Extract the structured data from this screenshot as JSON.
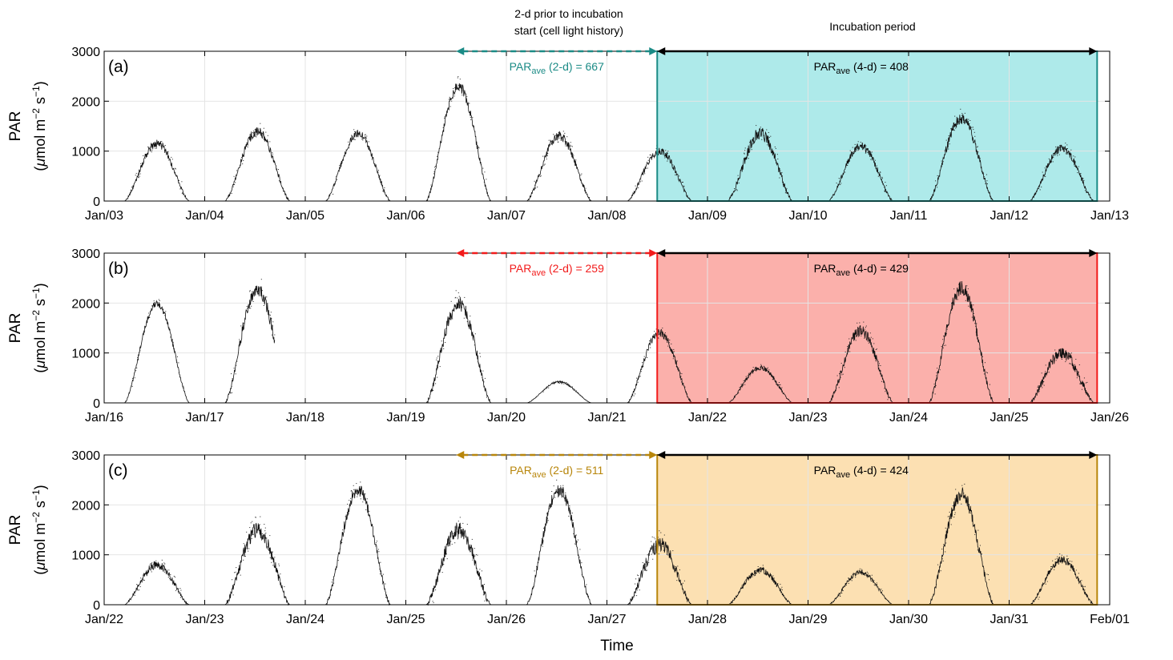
{
  "figure": {
    "xlabel": "Time",
    "top_label_history_line1": "2-d prior to incubation",
    "top_label_history_line2": "start (cell light history)",
    "top_label_incubation": "Incubation period"
  },
  "chart_data": [
    {
      "type": "line",
      "panel_label": "(a)",
      "ylabel_line1": "PAR",
      "ylabel_line2_parts": [
        "(",
        "μ",
        "mol m",
        "−2",
        " s",
        "−1",
        ")"
      ],
      "ylim": [
        0,
        3000
      ],
      "yticks": [
        0,
        1000,
        2000,
        3000
      ],
      "xlim": [
        "Jan/03",
        "Jan/13"
      ],
      "xticks": [
        "Jan/03",
        "Jan/04",
        "Jan/05",
        "Jan/06",
        "Jan/07",
        "Jan/08",
        "Jan/09",
        "Jan/10",
        "Jan/11",
        "Jan/12",
        "Jan/13"
      ],
      "grid": true,
      "history_window": {
        "start": "Jan/06 12:00",
        "end": "Jan/08 12:00"
      },
      "incubation_window": {
        "start": "Jan/08 12:00",
        "end": "Jan/12 21:00"
      },
      "history_color": "#1b8b86",
      "incubation_fill": "#aeeaea",
      "incubation_border": "#1b8b86",
      "history_annotation": {
        "base": "PAR",
        "sub": "ave",
        "rest": " (2-d) = 667"
      },
      "incubation_annotation": {
        "base": "PAR",
        "sub": "ave",
        "rest": " (4-d) = 408"
      },
      "daily_peaks": [
        1150,
        1400,
        1350,
        2300,
        1300,
        1000,
        1350,
        1100,
        1650,
        1050
      ],
      "noise": [
        250,
        300,
        250,
        350,
        300,
        250,
        400,
        250,
        350,
        250
      ]
    },
    {
      "type": "line",
      "panel_label": "(b)",
      "ylabel_line1": "PAR",
      "ylabel_line2_parts": [
        "(",
        "μ",
        "mol m",
        "−2",
        " s",
        "−1",
        ")"
      ],
      "ylim": [
        0,
        3000
      ],
      "yticks": [
        0,
        1000,
        2000,
        3000
      ],
      "xlim": [
        "Jan/16",
        "Jan/26"
      ],
      "xticks": [
        "Jan/16",
        "Jan/17",
        "Jan/18",
        "Jan/19",
        "Jan/20",
        "Jan/21",
        "Jan/22",
        "Jan/23",
        "Jan/24",
        "Jan/25",
        "Jan/26"
      ],
      "grid": true,
      "history_window": {
        "start": "Jan/19 12:00",
        "end": "Jan/21 12:00"
      },
      "incubation_window": {
        "start": "Jan/21 12:00",
        "end": "Jan/25 21:00"
      },
      "history_color": "#f21b1b",
      "incubation_fill": "#fbb0ab",
      "incubation_border": "#f21b1b",
      "history_annotation": {
        "base": "PAR",
        "sub": "ave",
        "rest": " (2-d) = 259"
      },
      "incubation_annotation": {
        "base": "PAR",
        "sub": "ave",
        "rest": " (4-d) = 429"
      },
      "daily_peaks": [
        1980,
        2300,
        0,
        2000,
        420,
        1400,
        700,
        1450,
        2300,
        1000
      ],
      "noise": [
        200,
        500,
        0,
        500,
        60,
        250,
        150,
        350,
        450,
        400
      ]
    },
    {
      "type": "line",
      "panel_label": "(c)",
      "ylabel_line1": "PAR",
      "ylabel_line2_parts": [
        "(",
        "μ",
        "mol m",
        "−2",
        " s",
        "−1",
        ")"
      ],
      "ylim": [
        0,
        3000
      ],
      "yticks": [
        0,
        1000,
        2000,
        3000
      ],
      "xlim": [
        "Jan/22",
        "Feb/01"
      ],
      "xticks": [
        "Jan/22",
        "Jan/23",
        "Jan/24",
        "Jan/25",
        "Jan/26",
        "Jan/27",
        "Jan/28",
        "Jan/29",
        "Jan/30",
        "Jan/31",
        "Feb/01"
      ],
      "grid": true,
      "history_window": {
        "start": "Jan/25 12:00",
        "end": "Jan/27 12:00"
      },
      "incubation_window": {
        "start": "Jan/27 12:00",
        "end": "Jan/31 21:00"
      },
      "history_color": "#b8860b",
      "incubation_fill": "#fce0b2",
      "incubation_border": "#b8860b",
      "history_annotation": {
        "base": "PAR",
        "sub": "ave",
        "rest": " (2-d) = 511"
      },
      "incubation_annotation": {
        "base": "PAR",
        "sub": "ave",
        "rest": " (4-d) = 424"
      },
      "daily_peaks": [
        800,
        1500,
        2300,
        1500,
        2300,
        1200,
        700,
        650,
        2200,
        900
      ],
      "noise": [
        250,
        500,
        400,
        550,
        450,
        500,
        200,
        150,
        500,
        250
      ]
    }
  ]
}
